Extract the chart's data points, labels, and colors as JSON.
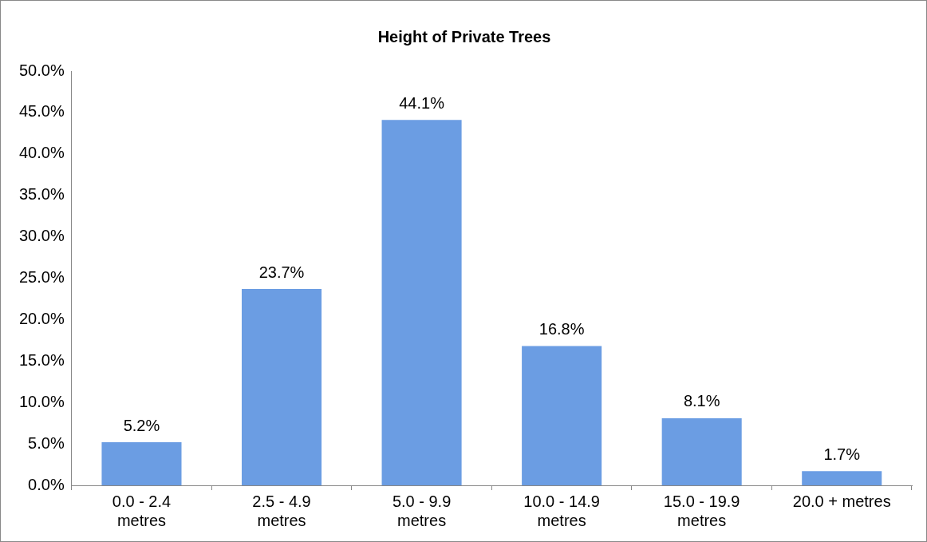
{
  "chart_data": {
    "type": "bar",
    "title": "Height of Private Trees",
    "categories": [
      "0.0 - 2.4 metres",
      "2.5 - 4.9 metres",
      "5.0 - 9.9 metres",
      "10.0 - 14.9 metres",
      "15.0 - 19.9 metres",
      "20.0 + metres"
    ],
    "values": [
      5.2,
      23.7,
      44.1,
      16.8,
      8.1,
      1.7
    ],
    "value_labels": [
      "5.2%",
      "23.7%",
      "44.1%",
      "16.8%",
      "8.1%",
      "1.7%"
    ],
    "color": "#6b9de3",
    "ylim": [
      0,
      50
    ],
    "yticks": [
      {
        "value": 0,
        "label": "0.0%"
      },
      {
        "value": 5,
        "label": "5.0%"
      },
      {
        "value": 10,
        "label": "10.0%"
      },
      {
        "value": 15,
        "label": "15.0%"
      },
      {
        "value": 20,
        "label": "20.0%"
      },
      {
        "value": 25,
        "label": "25.0%"
      },
      {
        "value": 30,
        "label": "30.0%"
      },
      {
        "value": 35,
        "label": "35.0%"
      },
      {
        "value": 40,
        "label": "40.0%"
      },
      {
        "value": 45,
        "label": "45.0%"
      },
      {
        "value": 50,
        "label": "50.0%"
      }
    ],
    "grid": false,
    "legend": false
  }
}
